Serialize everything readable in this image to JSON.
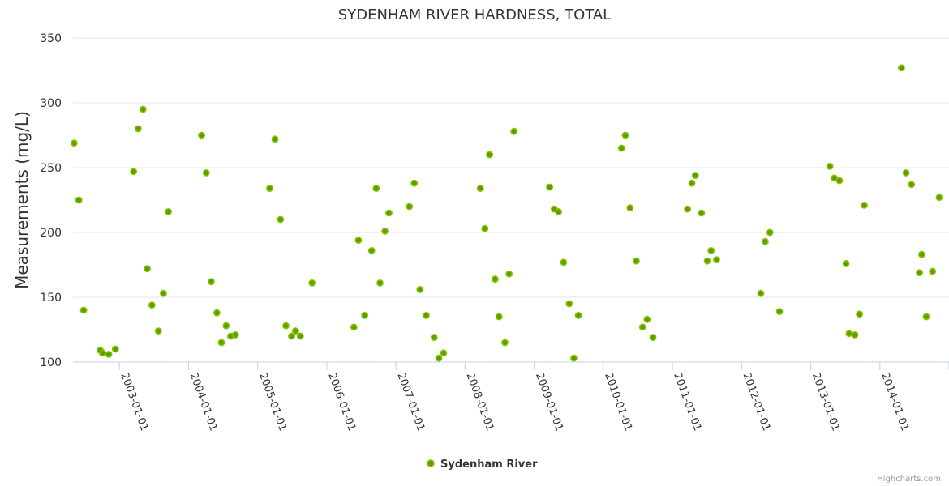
{
  "chart_data": {
    "type": "scatter",
    "title": "SYDENHAM RIVER HARDNESS, TOTAL",
    "ylabel": "Measurements (mg/L)",
    "xlabel": "",
    "ylim": [
      100,
      350
    ],
    "yticks": [
      "100",
      "150",
      "200",
      "250",
      "300",
      "350"
    ],
    "xlim": [
      "2002-05-01",
      "2015-01-01"
    ],
    "xticks": [
      "2003-01-01",
      "2004-01-01",
      "2005-01-01",
      "2006-01-01",
      "2007-01-01",
      "2008-01-01",
      "2009-01-01",
      "2010-01-01",
      "2011-01-01",
      "2012-01-01",
      "2013-01-01",
      "2014-01-01",
      "2015-01-01"
    ],
    "grid": true,
    "legend_position": "bottom-center",
    "marker_color": "#5c9e00",
    "marker_stroke": "#8ac000",
    "series": [
      {
        "name": "Sydenham River",
        "points": [
          [
            "2002-05-07",
            269
          ],
          [
            "2002-06-01",
            225
          ],
          [
            "2002-06-26",
            140
          ],
          [
            "2002-09-22",
            109
          ],
          [
            "2002-10-04",
            107
          ],
          [
            "2002-11-06",
            106
          ],
          [
            "2002-12-11",
            110
          ],
          [
            "2003-03-17",
            247
          ],
          [
            "2003-04-10",
            280
          ],
          [
            "2003-05-06",
            295
          ],
          [
            "2003-05-28",
            172
          ],
          [
            "2003-06-22",
            144
          ],
          [
            "2003-07-26",
            124
          ],
          [
            "2003-08-22",
            153
          ],
          [
            "2003-09-17",
            216
          ],
          [
            "2004-03-10",
            275
          ],
          [
            "2004-04-04",
            246
          ],
          [
            "2004-04-30",
            162
          ],
          [
            "2004-05-30",
            138
          ],
          [
            "2004-06-23",
            115
          ],
          [
            "2004-07-18",
            128
          ],
          [
            "2004-08-11",
            120
          ],
          [
            "2004-09-05",
            121
          ],
          [
            "2005-03-05",
            234
          ],
          [
            "2005-04-02",
            272
          ],
          [
            "2005-05-01",
            210
          ],
          [
            "2005-05-30",
            128
          ],
          [
            "2005-06-29",
            120
          ],
          [
            "2005-07-20",
            124
          ],
          [
            "2005-08-14",
            120
          ],
          [
            "2005-10-15",
            161
          ],
          [
            "2006-05-24",
            127
          ],
          [
            "2006-06-17",
            194
          ],
          [
            "2006-07-20",
            136
          ],
          [
            "2006-08-26",
            186
          ],
          [
            "2006-09-19",
            234
          ],
          [
            "2006-10-09",
            161
          ],
          [
            "2006-11-04",
            201
          ],
          [
            "2006-11-25",
            215
          ],
          [
            "2007-03-13",
            220
          ],
          [
            "2007-04-08",
            238
          ],
          [
            "2007-05-08",
            156
          ],
          [
            "2007-06-10",
            136
          ],
          [
            "2007-07-22",
            119
          ],
          [
            "2007-08-16",
            103
          ],
          [
            "2007-09-10",
            107
          ],
          [
            "2008-03-22",
            234
          ],
          [
            "2008-04-15",
            203
          ],
          [
            "2008-05-10",
            260
          ],
          [
            "2008-06-08",
            164
          ],
          [
            "2008-06-29",
            135
          ],
          [
            "2008-07-30",
            115
          ],
          [
            "2008-08-21",
            168
          ],
          [
            "2008-09-16",
            278
          ],
          [
            "2009-03-23",
            235
          ],
          [
            "2009-04-17",
            218
          ],
          [
            "2009-05-09",
            216
          ],
          [
            "2009-06-05",
            177
          ],
          [
            "2009-07-05",
            145
          ],
          [
            "2009-07-29",
            103
          ],
          [
            "2009-08-22",
            136
          ],
          [
            "2010-04-07",
            265
          ],
          [
            "2010-04-27",
            275
          ],
          [
            "2010-05-22",
            219
          ],
          [
            "2010-06-24",
            178
          ],
          [
            "2010-07-27",
            127
          ],
          [
            "2010-08-20",
            133
          ],
          [
            "2010-09-20",
            119
          ],
          [
            "2011-03-22",
            218
          ],
          [
            "2011-04-14",
            238
          ],
          [
            "2011-05-02",
            244
          ],
          [
            "2011-06-03",
            215
          ],
          [
            "2011-07-04",
            178
          ],
          [
            "2011-07-24",
            186
          ],
          [
            "2011-08-22",
            179
          ],
          [
            "2012-04-12",
            153
          ],
          [
            "2012-05-05",
            193
          ],
          [
            "2012-05-30",
            200
          ],
          [
            "2012-07-20",
            139
          ],
          [
            "2013-04-12",
            251
          ],
          [
            "2013-05-05",
            242
          ],
          [
            "2013-06-01",
            240
          ],
          [
            "2013-07-06",
            176
          ],
          [
            "2013-07-22",
            122
          ],
          [
            "2013-08-22",
            121
          ],
          [
            "2013-09-15",
            137
          ],
          [
            "2013-10-10",
            221
          ],
          [
            "2014-04-25",
            327
          ],
          [
            "2014-05-19",
            246
          ],
          [
            "2014-06-17",
            237
          ],
          [
            "2014-07-29",
            169
          ],
          [
            "2014-08-10",
            183
          ],
          [
            "2014-09-03",
            135
          ],
          [
            "2014-10-06",
            170
          ],
          [
            "2014-11-10",
            227
          ]
        ]
      }
    ]
  },
  "legend": {
    "label": "Sydenham River"
  },
  "credits": "Highcharts.com"
}
